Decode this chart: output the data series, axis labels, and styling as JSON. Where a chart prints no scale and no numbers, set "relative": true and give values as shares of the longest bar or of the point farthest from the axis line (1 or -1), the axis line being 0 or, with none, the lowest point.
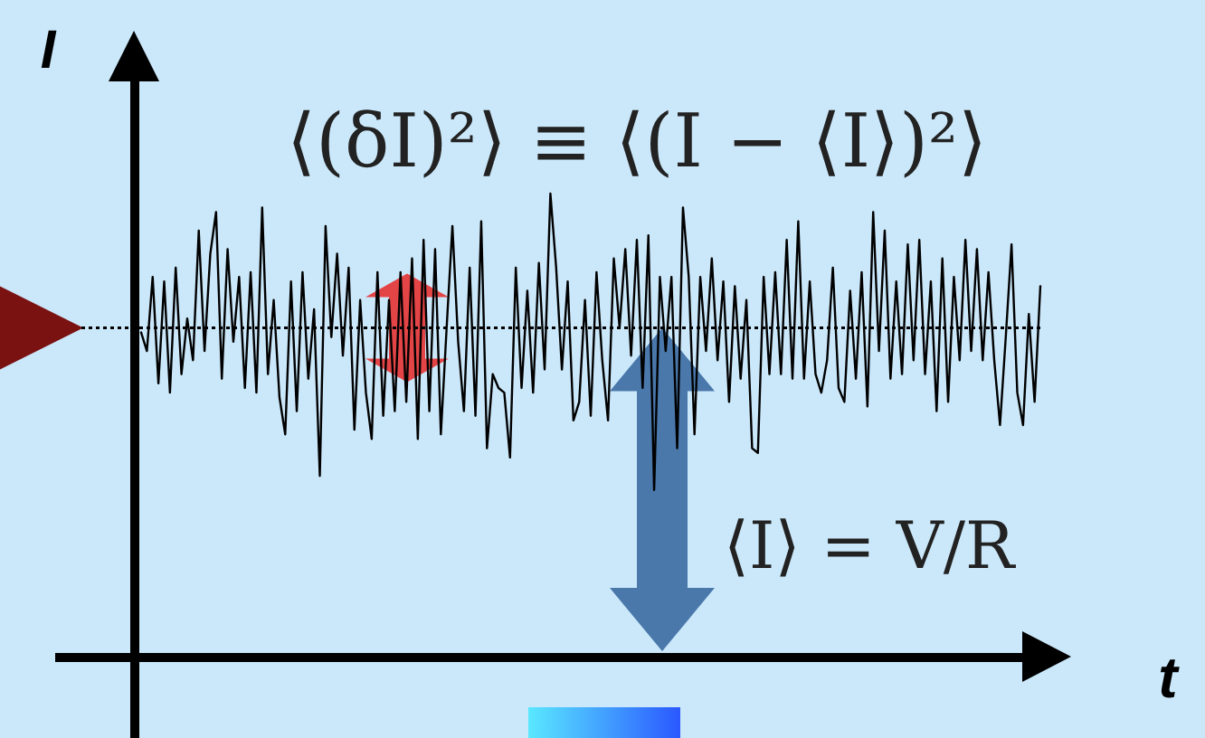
{
  "chart_data": {
    "type": "line",
    "relative": true,
    "xlabel": "t",
    "ylabel": "I",
    "color": "#000000",
    "categories": [
      null,
      null,
      null,
      null,
      null,
      null,
      null,
      null,
      null,
      null,
      null,
      null,
      null,
      null,
      null,
      null,
      null,
      null,
      null,
      null,
      null,
      null,
      null,
      null,
      null,
      null,
      null,
      null,
      null,
      null,
      null,
      null,
      null,
      null,
      null,
      null,
      null,
      null,
      null,
      null,
      null,
      null,
      null,
      null,
      null,
      null,
      null,
      null,
      null,
      null,
      null,
      null,
      null,
      null,
      null,
      null,
      null,
      null,
      null,
      null,
      null,
      null,
      null,
      null,
      null,
      null,
      null,
      null,
      null,
      null,
      null,
      null,
      null,
      null,
      null,
      null,
      null,
      null,
      null,
      null,
      null,
      null,
      null,
      null,
      null,
      null,
      null,
      null,
      null,
      null,
      null,
      null,
      null,
      null,
      null,
      null,
      null,
      null,
      null,
      null,
      null,
      null,
      null,
      null,
      null,
      null,
      null,
      null,
      null,
      null,
      null,
      null,
      null,
      null,
      null,
      null,
      null,
      null,
      null,
      null,
      null,
      null,
      null,
      null,
      null,
      null,
      null,
      null,
      null,
      null,
      null,
      null,
      null,
      null,
      null,
      null,
      null,
      null,
      null,
      null,
      null,
      null,
      null,
      null,
      null,
      null,
      null,
      null,
      null,
      null,
      null,
      null,
      null,
      null,
      null,
      null,
      null
    ],
    "values": [
      0.7,
      0.66,
      0.82,
      0.59,
      0.81,
      0.57,
      0.84,
      0.61,
      0.73,
      0.64,
      0.92,
      0.66,
      0.87,
      0.96,
      0.6,
      0.88,
      0.68,
      0.82,
      0.58,
      0.83,
      0.57,
      0.97,
      0.61,
      0.77,
      0.56,
      0.48,
      0.81,
      0.53,
      0.83,
      0.6,
      0.75,
      0.39,
      0.93,
      0.69,
      0.87,
      0.65,
      0.84,
      0.49,
      0.77,
      0.57,
      0.47,
      0.83,
      0.52,
      0.77,
      0.53,
      0.83,
      0.55,
      0.86,
      0.47,
      0.9,
      0.53,
      0.88,
      0.48,
      0.71,
      0.93,
      0.68,
      0.53,
      0.84,
      0.52,
      0.94,
      0.45,
      0.61,
      0.58,
      0.57,
      0.43,
      0.84,
      0.58,
      0.79,
      0.57,
      0.85,
      0.62,
      1.0,
      0.84,
      0.62,
      0.81,
      0.51,
      0.55,
      0.77,
      0.52,
      0.83,
      0.64,
      0.51,
      0.86,
      0.71,
      0.88,
      0.65,
      0.9,
      0.58,
      0.91,
      0.36,
      0.82,
      0.66,
      0.82,
      0.45,
      0.97,
      0.82,
      0.48,
      0.82,
      0.66,
      0.86,
      0.64,
      0.81,
      0.55,
      0.8,
      0.6,
      0.77,
      0.45,
      0.44,
      0.82,
      0.61,
      0.83,
      0.61,
      0.9,
      0.6,
      0.94,
      0.6,
      0.81,
      0.61,
      0.57,
      0.64,
      0.84,
      0.58,
      0.55,
      0.79,
      0.6,
      0.83,
      0.54,
      0.96,
      0.66,
      0.92,
      0.6,
      0.81,
      0.61,
      0.89,
      0.64,
      0.9,
      0.61,
      0.81,
      0.53,
      0.86,
      0.55,
      0.82,
      0.64,
      0.9,
      0.66,
      0.88,
      0.64,
      0.83,
      0.64,
      0.5,
      0.69,
      0.89,
      0.57,
      0.5,
      0.74,
      0.55,
      0.8
    ],
    "ref_lines": [
      {
        "axis": "y",
        "value": 0.71,
        "line_style": "dotted",
        "color": "#000000"
      }
    ],
    "annotations": [
      "⟨(δI)²⟩ ≡ ⟨(I − ⟨I⟩)²⟩",
      "⟨I⟩ = V/R"
    ]
  }
}
